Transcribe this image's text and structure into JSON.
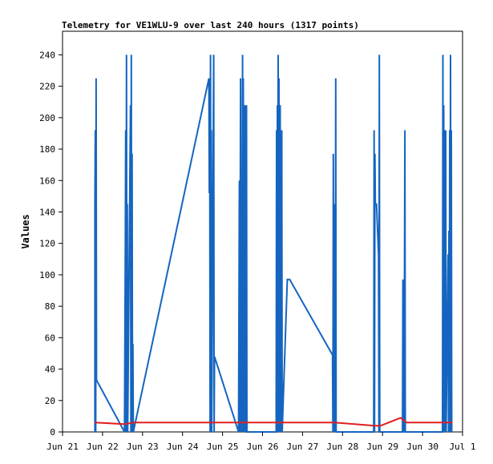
{
  "chart_data": {
    "type": "line",
    "title": "Telemetry for VE1WLU-9 over last 240 hours (1317 points)",
    "xlabel": "",
    "ylabel": "Values",
    "ylim": [
      0,
      255
    ],
    "xlim": [
      0,
      10
    ],
    "grid": false,
    "legend": "none",
    "x_ticks": [
      {
        "x": 0,
        "label": "Jun 21"
      },
      {
        "x": 1,
        "label": "Jun 22"
      },
      {
        "x": 2,
        "label": "Jun 23"
      },
      {
        "x": 3,
        "label": "Jun 24"
      },
      {
        "x": 4,
        "label": "Jun 25"
      },
      {
        "x": 5,
        "label": "Jun 26"
      },
      {
        "x": 6,
        "label": "Jun 27"
      },
      {
        "x": 7,
        "label": "Jun 28"
      },
      {
        "x": 8,
        "label": "Jun 29"
      },
      {
        "x": 9,
        "label": "Jun 30"
      },
      {
        "x": 10,
        "label": "Jul 1"
      }
    ],
    "y_ticks": [
      0,
      20,
      40,
      60,
      80,
      100,
      120,
      140,
      160,
      180,
      200,
      220,
      240
    ],
    "series": [
      {
        "color": "#1565c0",
        "points": [
          [
            0.81,
            0
          ],
          [
            0.81,
            145
          ],
          [
            0.82,
            192
          ],
          [
            0.83,
            0
          ],
          [
            0.84,
            225
          ],
          [
            0.85,
            33
          ],
          [
            1.55,
            0
          ],
          [
            1.57,
            113
          ],
          [
            1.58,
            192
          ],
          [
            1.59,
            0
          ],
          [
            1.6,
            240
          ],
          [
            1.61,
            0
          ],
          [
            1.62,
            145
          ],
          [
            1.63,
            0
          ],
          [
            1.7,
            208
          ],
          [
            1.71,
            0
          ],
          [
            1.72,
            240
          ],
          [
            1.73,
            0
          ],
          [
            1.74,
            177
          ],
          [
            1.75,
            0
          ],
          [
            1.76,
            56
          ],
          [
            1.77,
            0
          ],
          [
            3.66,
            225
          ],
          [
            3.67,
            152
          ],
          [
            3.68,
            225
          ],
          [
            3.69,
            0
          ],
          [
            3.7,
            240
          ],
          [
            3.71,
            0
          ],
          [
            3.72,
            192
          ],
          [
            3.73,
            0
          ],
          [
            3.78,
            240
          ],
          [
            3.79,
            0
          ],
          [
            3.8,
            48
          ],
          [
            4.4,
            0
          ],
          [
            4.42,
            160
          ],
          [
            4.43,
            0
          ],
          [
            4.45,
            225
          ],
          [
            4.46,
            0
          ],
          [
            4.47,
            80
          ],
          [
            4.48,
            0
          ],
          [
            4.5,
            240
          ],
          [
            4.51,
            0
          ],
          [
            4.52,
            225
          ],
          [
            4.53,
            0
          ],
          [
            4.55,
            208
          ],
          [
            4.56,
            0
          ],
          [
            4.58,
            208
          ],
          [
            4.59,
            0
          ],
          [
            4.6,
            208
          ],
          [
            4.61,
            0
          ],
          [
            5.34,
            0
          ],
          [
            5.35,
            192
          ],
          [
            5.36,
            0
          ],
          [
            5.37,
            208
          ],
          [
            5.38,
            0
          ],
          [
            5.39,
            240
          ],
          [
            5.4,
            0
          ],
          [
            5.41,
            225
          ],
          [
            5.42,
            0
          ],
          [
            5.44,
            208
          ],
          [
            5.45,
            0
          ],
          [
            5.46,
            192
          ],
          [
            5.47,
            0
          ],
          [
            5.48,
            192
          ],
          [
            5.49,
            0
          ],
          [
            5.62,
            97
          ],
          [
            5.68,
            97
          ],
          [
            6.75,
            49
          ],
          [
            6.76,
            0
          ],
          [
            6.77,
            177
          ],
          [
            6.78,
            0
          ],
          [
            6.79,
            128
          ],
          [
            6.8,
            0
          ],
          [
            6.81,
            145
          ],
          [
            6.82,
            0
          ],
          [
            6.83,
            225
          ],
          [
            6.84,
            0
          ],
          [
            7.78,
            0
          ],
          [
            7.79,
            192
          ],
          [
            7.8,
            0
          ],
          [
            7.81,
            177
          ],
          [
            7.82,
            145
          ],
          [
            7.85,
            145
          ],
          [
            7.9,
            113
          ],
          [
            7.91,
            0
          ],
          [
            7.92,
            240
          ],
          [
            7.93,
            0
          ],
          [
            8.5,
            0
          ],
          [
            8.51,
            97
          ],
          [
            8.52,
            0
          ],
          [
            8.53,
            80
          ],
          [
            8.54,
            0
          ],
          [
            8.56,
            192
          ],
          [
            8.57,
            0
          ],
          [
            9.5,
            0
          ],
          [
            9.51,
            240
          ],
          [
            9.52,
            0
          ],
          [
            9.53,
            208
          ],
          [
            9.54,
            0
          ],
          [
            9.55,
            192
          ],
          [
            9.56,
            0
          ],
          [
            9.58,
            192
          ],
          [
            9.59,
            0
          ],
          [
            9.64,
            113
          ],
          [
            9.65,
            0
          ],
          [
            9.66,
            128
          ],
          [
            9.67,
            0
          ],
          [
            9.68,
            192
          ],
          [
            9.69,
            0
          ],
          [
            9.7,
            240
          ],
          [
            9.71,
            0
          ],
          [
            9.72,
            192
          ],
          [
            9.73,
            0
          ]
        ]
      },
      {
        "color": "#e02020",
        "points": [
          [
            0.8,
            6
          ],
          [
            1.55,
            5
          ],
          [
            1.8,
            6
          ],
          [
            3.7,
            6
          ],
          [
            5.4,
            6
          ],
          [
            6.8,
            6
          ],
          [
            7.8,
            4
          ],
          [
            7.95,
            4
          ],
          [
            8.45,
            9
          ],
          [
            8.6,
            6
          ],
          [
            9.5,
            6
          ],
          [
            9.75,
            6
          ]
        ]
      }
    ]
  }
}
